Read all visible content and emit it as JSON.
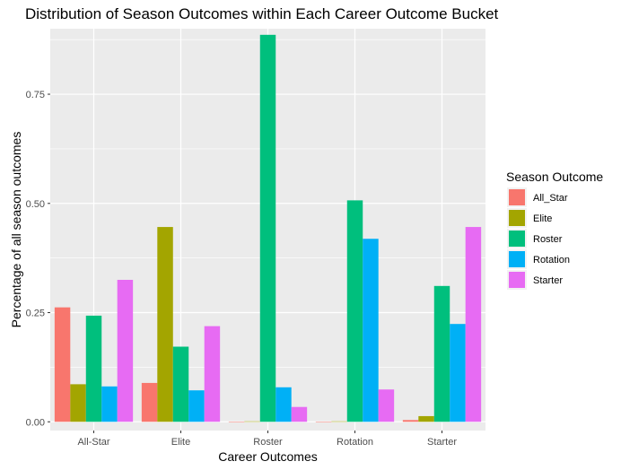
{
  "chart_data": {
    "type": "bar",
    "title": "Distribution of Season Outcomes within Each Career Outcome Bucket",
    "xlabel": "Career Outcomes",
    "ylabel": "Percentage of all season outcomes",
    "categories": [
      "All-Star",
      "Elite",
      "Roster",
      "Rotation",
      "Starter"
    ],
    "yticks": [
      "0.00",
      "0.25",
      "0.50",
      "0.75"
    ],
    "ytick_values": [
      0,
      0.25,
      0.5,
      0.75
    ],
    "ylim": [
      -0.02,
      0.9
    ],
    "grid": true,
    "legend_placement": "right",
    "legend_title": "Season Outcome",
    "series": [
      {
        "name": "All_Star",
        "color": "#F8766D",
        "values": [
          0.262,
          0.089,
          0.0,
          0.0,
          0.004
        ]
      },
      {
        "name": "Elite",
        "color": "#A3A500",
        "values": [
          0.086,
          0.446,
          0.001,
          0.001,
          0.013
        ]
      },
      {
        "name": "Roster",
        "color": "#00BF7D",
        "values": [
          0.243,
          0.172,
          0.886,
          0.507,
          0.311
        ]
      },
      {
        "name": "Rotation",
        "color": "#00B0F6",
        "values": [
          0.081,
          0.072,
          0.079,
          0.419,
          0.224
        ]
      },
      {
        "name": "Starter",
        "color": "#E76BF3",
        "values": [
          0.325,
          0.219,
          0.034,
          0.074,
          0.446
        ]
      }
    ]
  }
}
